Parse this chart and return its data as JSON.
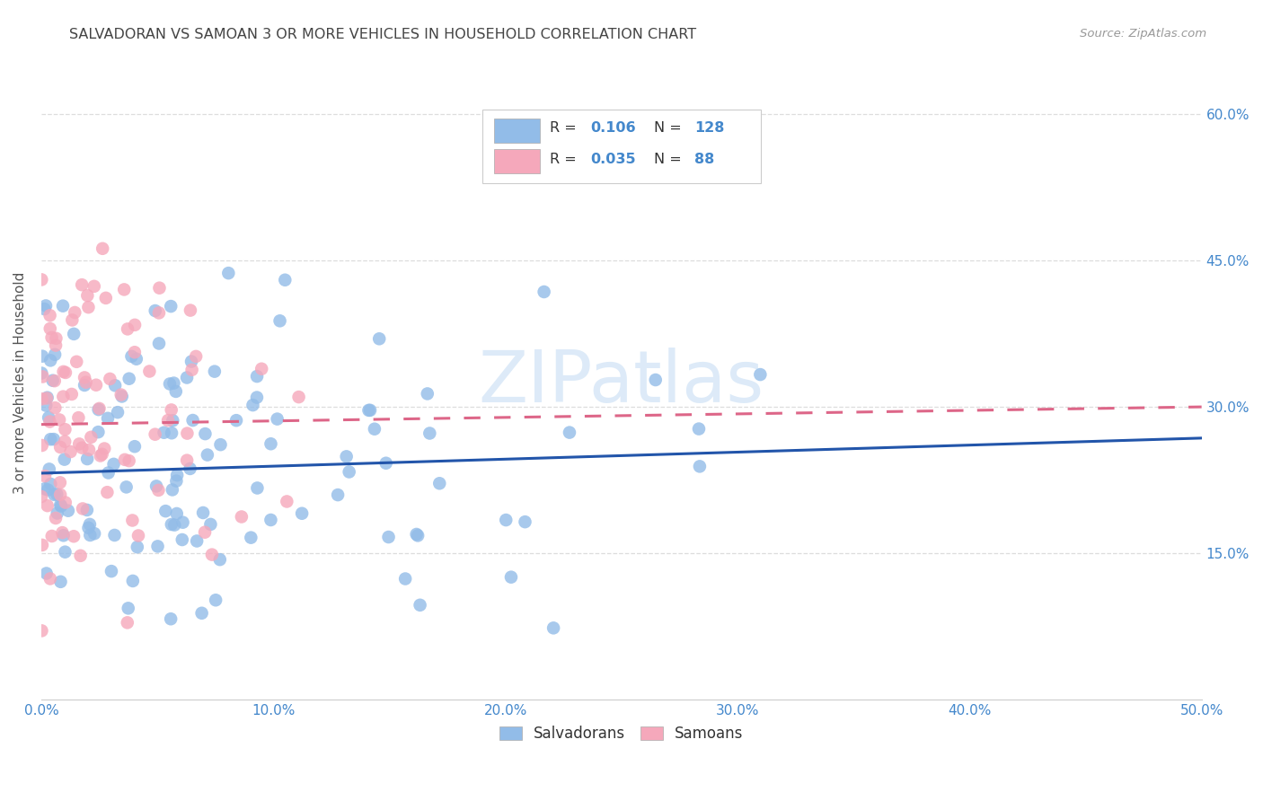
{
  "title": "SALVADORAN VS SAMOAN 3 OR MORE VEHICLES IN HOUSEHOLD CORRELATION CHART",
  "source": "Source: ZipAtlas.com",
  "ylabel_label": "3 or more Vehicles in Household",
  "x_min": 0.0,
  "x_max": 0.5,
  "y_min": 0.0,
  "y_max": 0.65,
  "x_ticks": [
    0.0,
    0.1,
    0.2,
    0.3,
    0.4,
    0.5
  ],
  "x_tick_labels": [
    "0.0%",
    "10.0%",
    "20.0%",
    "30.0%",
    "40.0%",
    "50.0%"
  ],
  "y_ticks": [
    0.15,
    0.3,
    0.45,
    0.6
  ],
  "y_tick_labels": [
    "15.0%",
    "30.0%",
    "45.0%",
    "60.0%"
  ],
  "salvadoran_R": 0.106,
  "salvadoran_N": 128,
  "samoan_R": 0.035,
  "samoan_N": 88,
  "blue_color": "#92bce8",
  "pink_color": "#f5a8bb",
  "blue_line_color": "#2255aa",
  "pink_line_color": "#dd6688",
  "title_color": "#444444",
  "axis_color": "#4488cc",
  "grid_color": "#dddddd",
  "background_color": "#ffffff",
  "legend_label_blue": "Salvadorans",
  "legend_label_pink": "Samoans",
  "blue_line_y0": 0.232,
  "blue_line_y1": 0.268,
  "pink_line_y0": 0.282,
  "pink_line_y1": 0.3,
  "watermark": "ZIPatlas",
  "watermark_color": "#aaccee",
  "watermark_alpha": 0.4
}
